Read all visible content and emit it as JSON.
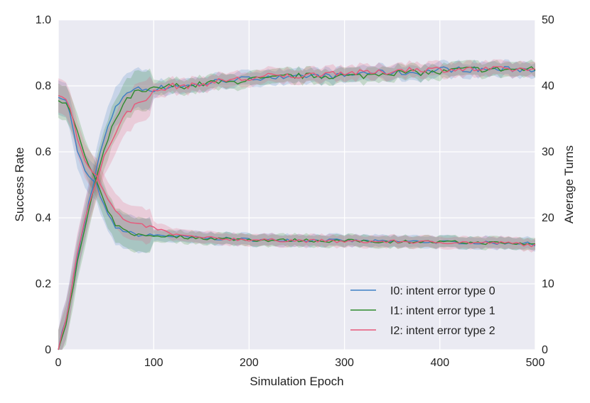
{
  "chart_data": {
    "type": "line",
    "xlabel": "Simulation Epoch",
    "ylabel": "Success Rate",
    "ylabel_right": "Average Turns",
    "xlim": [
      0,
      500
    ],
    "ylim": [
      0,
      1.0
    ],
    "ylim_right": [
      0,
      50
    ],
    "xticks": [
      0,
      100,
      200,
      300,
      400,
      500
    ],
    "yticks": [
      0,
      0.2,
      0.4,
      0.6,
      0.8,
      1.0
    ],
    "yticks_right": [
      0,
      10,
      20,
      30,
      40,
      50
    ],
    "xtick_labels": [
      "0",
      "100",
      "200",
      "300",
      "400",
      "500"
    ],
    "ytick_labels": [
      "0",
      "0.2",
      "0.4",
      "0.6",
      "0.8",
      "1.0"
    ],
    "ytick_labels_right": [
      "0",
      "10",
      "20",
      "30",
      "40",
      "50"
    ],
    "grid": true,
    "background": "#EAEAF2",
    "legend_position": "bottom-right",
    "x": [
      0,
      10,
      20,
      30,
      40,
      50,
      60,
      70,
      80,
      90,
      100,
      120,
      140,
      160,
      180,
      200,
      220,
      240,
      260,
      280,
      300,
      320,
      340,
      360,
      380,
      400,
      420,
      440,
      460,
      480,
      500
    ],
    "series": [
      {
        "name": "I0: intent error type 0",
        "color": "#3C7FC4",
        "success_rate": [
          0.0,
          0.12,
          0.28,
          0.42,
          0.55,
          0.66,
          0.73,
          0.78,
          0.79,
          0.79,
          0.79,
          0.8,
          0.8,
          0.81,
          0.82,
          0.82,
          0.83,
          0.82,
          0.83,
          0.83,
          0.83,
          0.84,
          0.84,
          0.84,
          0.84,
          0.85,
          0.85,
          0.85,
          0.85,
          0.85,
          0.85
        ],
        "average_turns": [
          38.5,
          37.5,
          30.0,
          26.5,
          25.0,
          21.0,
          18.5,
          18.0,
          17.5,
          17.3,
          17.4,
          17.2,
          17.0,
          16.9,
          16.8,
          16.7,
          16.6,
          16.7,
          16.6,
          16.6,
          16.5,
          16.5,
          16.4,
          16.4,
          16.4,
          16.3,
          16.3,
          16.2,
          16.2,
          16.2,
          16.0
        ]
      },
      {
        "name": "I1: intent error type 1",
        "color": "#2E8B2E",
        "success_rate": [
          0.0,
          0.1,
          0.26,
          0.4,
          0.52,
          0.62,
          0.7,
          0.75,
          0.78,
          0.78,
          0.79,
          0.8,
          0.8,
          0.81,
          0.81,
          0.82,
          0.82,
          0.83,
          0.83,
          0.83,
          0.83,
          0.83,
          0.84,
          0.84,
          0.84,
          0.84,
          0.85,
          0.85,
          0.85,
          0.85,
          0.85
        ],
        "average_turns": [
          38.0,
          37.0,
          33.0,
          28.5,
          25.5,
          21.5,
          19.0,
          18.0,
          17.5,
          17.3,
          17.3,
          17.2,
          17.0,
          16.9,
          16.8,
          16.7,
          16.6,
          16.6,
          16.6,
          16.5,
          16.5,
          16.5,
          16.4,
          16.4,
          16.4,
          16.3,
          16.3,
          16.2,
          16.2,
          16.1,
          16.0
        ]
      },
      {
        "name": "I2: intent error type 2",
        "color": "#E8577A",
        "success_rate": [
          0.0,
          0.12,
          0.29,
          0.43,
          0.51,
          0.6,
          0.66,
          0.71,
          0.74,
          0.76,
          0.78,
          0.8,
          0.8,
          0.81,
          0.82,
          0.82,
          0.83,
          0.83,
          0.83,
          0.84,
          0.84,
          0.84,
          0.84,
          0.85,
          0.85,
          0.85,
          0.85,
          0.85,
          0.85,
          0.85,
          0.85
        ],
        "average_turns": [
          38.5,
          38.0,
          32.0,
          28.0,
          26.5,
          23.5,
          21.0,
          19.5,
          19.0,
          18.8,
          18.5,
          17.5,
          17.1,
          16.9,
          16.8,
          16.7,
          16.6,
          16.6,
          16.5,
          16.5,
          16.4,
          16.4,
          16.4,
          16.4,
          16.3,
          16.3,
          16.3,
          16.2,
          16.2,
          16.1,
          15.8
        ]
      }
    ]
  }
}
